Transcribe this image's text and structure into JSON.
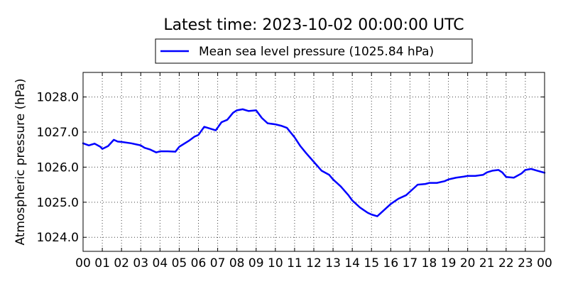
{
  "chart_data": {
    "type": "line",
    "title": "Latest time: 2023-10-02 00:00:00 UTC",
    "xlabel": "",
    "ylabel": "Atmospheric pressure (hPa)",
    "xlim": [
      0,
      24
    ],
    "ylim": [
      1023.6,
      1028.7
    ],
    "grid": true,
    "legend_position": "top-center",
    "x_tick_values": [
      0,
      1,
      2,
      3,
      4,
      5,
      6,
      7,
      8,
      9,
      10,
      11,
      12,
      13,
      14,
      15,
      16,
      17,
      18,
      19,
      20,
      21,
      22,
      23,
      24
    ],
    "x_tick_labels": [
      "00",
      "01",
      "02",
      "03",
      "04",
      "05",
      "06",
      "07",
      "08",
      "09",
      "10",
      "11",
      "12",
      "13",
      "14",
      "15",
      "16",
      "17",
      "18",
      "19",
      "20",
      "21",
      "22",
      "23",
      "00"
    ],
    "y_tick_values": [
      1024.0,
      1025.0,
      1026.0,
      1027.0,
      1028.0
    ],
    "y_tick_labels": [
      "1024.0",
      "1025.0",
      "1026.0",
      "1027.0",
      "1028.0"
    ],
    "series": [
      {
        "name": "Mean sea level pressure (1025.84 hPa)",
        "color": "#0000ff",
        "x": [
          0,
          0.3,
          0.6,
          0.9,
          1.0,
          1.3,
          1.6,
          1.8,
          2.0,
          2.5,
          3.0,
          3.2,
          3.5,
          3.8,
          4.0,
          4.4,
          4.8,
          5.0,
          5.5,
          5.8,
          6.0,
          6.3,
          6.6,
          6.9,
          7.2,
          7.5,
          7.8,
          8.0,
          8.3,
          8.6,
          9.0,
          9.3,
          9.6,
          10.0,
          10.3,
          10.6,
          11.0,
          11.3,
          11.6,
          12.0,
          12.4,
          12.8,
          13.0,
          13.4,
          13.8,
          14.0,
          14.4,
          14.8,
          15.0,
          15.3,
          15.6,
          16.0,
          16.4,
          16.8,
          17.0,
          17.4,
          17.8,
          18.0,
          18.4,
          18.8,
          19.0,
          19.4,
          19.8,
          20.0,
          20.4,
          20.8,
          21.0,
          21.3,
          21.6,
          21.8,
          22.0,
          22.4,
          22.8,
          23.0,
          23.3,
          23.6,
          24.0
        ],
        "y": [
          1026.68,
          1026.62,
          1026.67,
          1026.58,
          1026.52,
          1026.6,
          1026.78,
          1026.73,
          1026.72,
          1026.68,
          1026.62,
          1026.55,
          1026.5,
          1026.42,
          1026.45,
          1026.45,
          1026.44,
          1026.58,
          1026.75,
          1026.87,
          1026.92,
          1027.15,
          1027.1,
          1027.05,
          1027.28,
          1027.35,
          1027.55,
          1027.62,
          1027.65,
          1027.6,
          1027.62,
          1027.4,
          1027.25,
          1027.22,
          1027.18,
          1027.12,
          1026.85,
          1026.6,
          1026.4,
          1026.15,
          1025.9,
          1025.78,
          1025.65,
          1025.45,
          1025.2,
          1025.05,
          1024.85,
          1024.7,
          1024.65,
          1024.6,
          1024.75,
          1024.95,
          1025.1,
          1025.2,
          1025.3,
          1025.5,
          1025.52,
          1025.55,
          1025.55,
          1025.6,
          1025.65,
          1025.7,
          1025.73,
          1025.75,
          1025.75,
          1025.78,
          1025.85,
          1025.9,
          1025.92,
          1025.85,
          1025.72,
          1025.7,
          1025.82,
          1025.92,
          1025.95,
          1025.9,
          1025.84
        ]
      }
    ]
  }
}
